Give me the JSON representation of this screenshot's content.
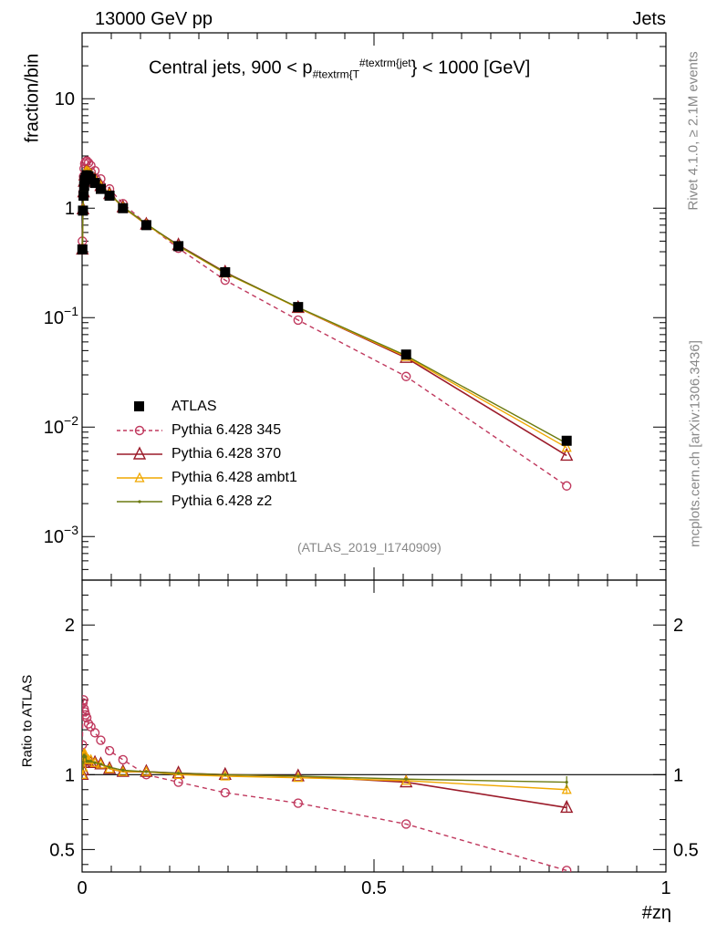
{
  "header": {
    "left": "13000 GeV pp",
    "right": "Jets",
    "title_main": "Central jets, 900 < p",
    "title_sub": "#textrm{T",
    "title_sup": "#textrm{jet",
    "title_tail": "} < 1000 [GeV]"
  },
  "side_labels": {
    "rivet": "Rivet 4.1.0, ≥ 2.1M events",
    "mcplots": "mcplots.cern.ch [arXiv:1306.3436]"
  },
  "watermark": "(ATLAS_2019_I1740909)",
  "colors": {
    "atlas": "#000000",
    "p345": "#c0395e",
    "p370": "#9b1b2a",
    "ambt1": "#f0a800",
    "z2": "#6b7a10",
    "frame": "#000000",
    "gray": "#888888"
  },
  "legend": [
    {
      "key": "atlas",
      "label": "ATLAS"
    },
    {
      "key": "p345",
      "label": "Pythia 6.428 345"
    },
    {
      "key": "p370",
      "label": "Pythia 6.428 370"
    },
    {
      "key": "ambt1",
      "label": "Pythia 6.428 ambt1"
    },
    {
      "key": "z2",
      "label": "Pythia 6.428 z2"
    }
  ],
  "chart_data": [
    {
      "type": "line",
      "panel": "main",
      "yscale": "log",
      "ylabel": "fraction/bin",
      "xlim": [
        0,
        1
      ],
      "ylim": [
        0.0004,
        40
      ],
      "yticks": [
        {
          "value": 0.001,
          "mant": "10",
          "exp": "−3"
        },
        {
          "value": 0.01,
          "mant": "10",
          "exp": "−2"
        },
        {
          "value": 0.1,
          "mant": "10",
          "exp": "−1"
        },
        {
          "value": 1,
          "mant": "1",
          "exp": ""
        },
        {
          "value": 10,
          "mant": "10",
          "exp": ""
        }
      ],
      "x": [
        0.0005,
        0.0015,
        0.0025,
        0.0035,
        0.0045,
        0.006,
        0.008,
        0.011,
        0.015,
        0.022,
        0.032,
        0.047,
        0.07,
        0.11,
        0.165,
        0.245,
        0.37,
        0.555,
        0.83
      ],
      "series": [
        {
          "key": "atlas",
          "name": "ATLAS",
          "values": [
            0.42,
            0.95,
            1.3,
            1.6,
            1.8,
            1.9,
            2.0,
            1.95,
            1.85,
            1.7,
            1.5,
            1.3,
            1.0,
            0.7,
            0.45,
            0.26,
            0.125,
            0.046,
            0.0075
          ]
        },
        {
          "key": "p345",
          "name": "Pythia 6.428 345",
          "values": [
            0.5,
            1.4,
            1.95,
            2.3,
            2.55,
            2.65,
            2.7,
            2.6,
            2.45,
            2.2,
            1.85,
            1.5,
            1.1,
            0.72,
            0.43,
            0.22,
            0.095,
            0.029,
            0.0029
          ]
        },
        {
          "key": "p370",
          "name": "Pythia 6.428 370",
          "values": [
            0.42,
            0.98,
            1.4,
            1.75,
            2.0,
            2.1,
            2.15,
            2.1,
            2.0,
            1.85,
            1.6,
            1.35,
            1.02,
            0.71,
            0.46,
            0.26,
            0.123,
            0.043,
            0.0055
          ]
        },
        {
          "key": "ambt1",
          "name": "Pythia 6.428 ambt1",
          "values": [
            0.43,
            1.0,
            1.45,
            1.8,
            2.05,
            2.15,
            2.2,
            2.15,
            2.05,
            1.85,
            1.6,
            1.35,
            1.02,
            0.71,
            0.45,
            0.255,
            0.123,
            0.044,
            0.0065
          ]
        },
        {
          "key": "z2",
          "name": "Pythia 6.428 z2",
          "values": [
            0.44,
            1.02,
            1.45,
            1.8,
            2.02,
            2.12,
            2.17,
            2.12,
            2.02,
            1.84,
            1.6,
            1.36,
            1.03,
            0.72,
            0.455,
            0.258,
            0.124,
            0.045,
            0.0071
          ]
        }
      ]
    },
    {
      "type": "line",
      "panel": "ratio",
      "yscale": "linear",
      "ylabel": "Ratio to ATLAS",
      "xlabel": "#zη",
      "xlim": [
        0,
        1
      ],
      "ylim": [
        0.35,
        2.3
      ],
      "yticks": [
        {
          "value": 0.5,
          "label": "0.5"
        },
        {
          "value": 1,
          "label": "1"
        },
        {
          "value": 2,
          "label": "2"
        }
      ],
      "xticks": [
        {
          "value": 0,
          "label": "0"
        },
        {
          "value": 0.5,
          "label": "0.5"
        },
        {
          "value": 1,
          "label": "1"
        }
      ],
      "x": [
        0.0005,
        0.0015,
        0.0025,
        0.0035,
        0.0045,
        0.006,
        0.008,
        0.011,
        0.015,
        0.022,
        0.032,
        0.047,
        0.07,
        0.11,
        0.165,
        0.245,
        0.37,
        0.555,
        0.83
      ],
      "series": [
        {
          "key": "p345",
          "name": "Pythia 6.428 345",
          "values": [
            1.2,
            1.48,
            1.5,
            1.44,
            1.42,
            1.4,
            1.38,
            1.34,
            1.32,
            1.28,
            1.23,
            1.16,
            1.1,
            1.0,
            0.95,
            0.88,
            0.81,
            0.67,
            0.36
          ]
        },
        {
          "key": "p370",
          "name": "Pythia 6.428 370",
          "values": [
            1.0,
            1.03,
            1.08,
            1.1,
            1.11,
            1.1,
            1.08,
            1.08,
            1.08,
            1.08,
            1.07,
            1.04,
            1.02,
            1.02,
            1.01,
            1.0,
            0.99,
            0.95,
            0.78
          ]
        },
        {
          "key": "ambt1",
          "name": "Pythia 6.428 ambt1",
          "values": [
            1.0,
            1.05,
            1.12,
            1.14,
            1.14,
            1.13,
            1.1,
            1.1,
            1.1,
            1.08,
            1.07,
            1.04,
            1.02,
            1.02,
            1.0,
            0.99,
            0.98,
            0.96,
            0.9
          ]
        },
        {
          "key": "z2",
          "name": "Pythia 6.428 z2",
          "values": [
            1.04,
            1.08,
            1.12,
            1.13,
            1.12,
            1.12,
            1.09,
            1.09,
            1.09,
            1.08,
            1.07,
            1.05,
            1.03,
            1.02,
            1.01,
            1.0,
            0.99,
            0.97,
            0.95
          ]
        }
      ]
    }
  ]
}
